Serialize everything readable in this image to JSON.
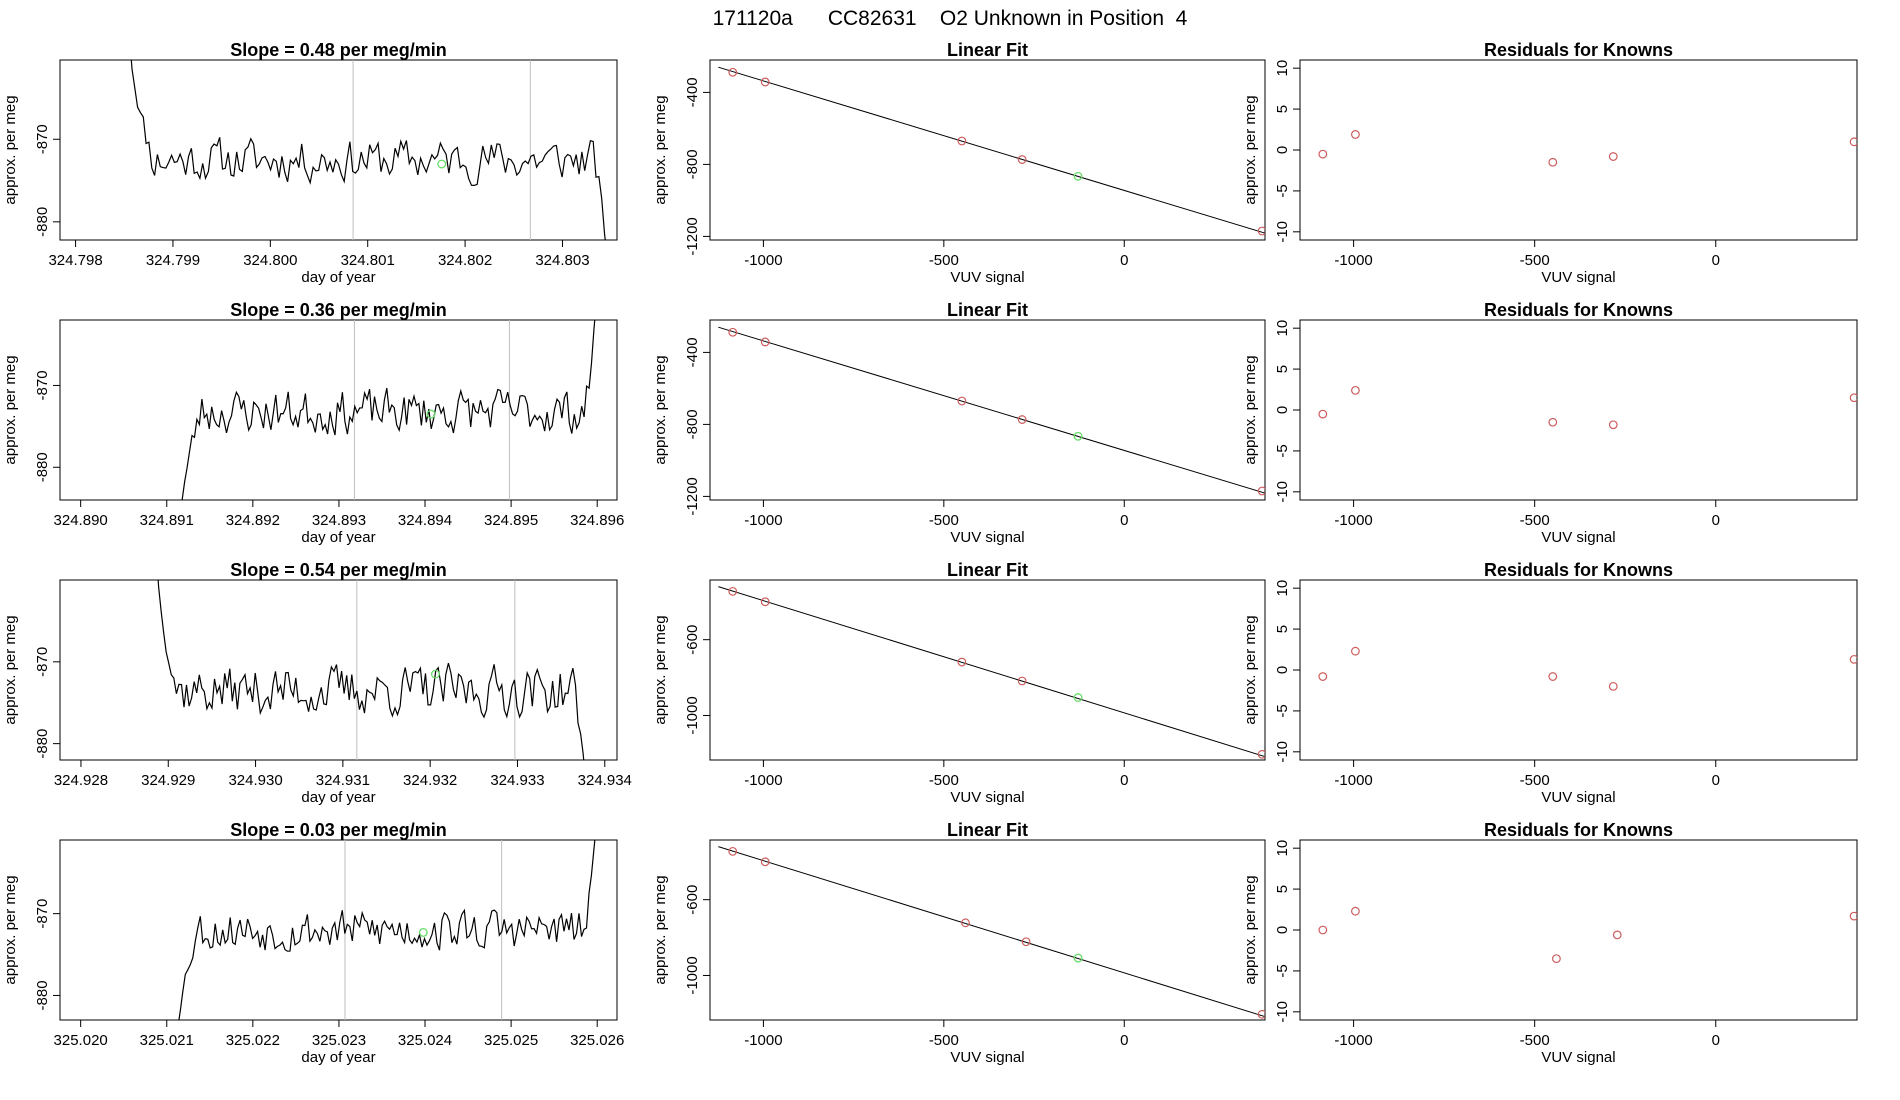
{
  "page_title": "171120a      CC82631    O2 Unknown in Position  4",
  "colors": {
    "line": "#000000",
    "point_known": "#cd5c5c",
    "point_unknown": "#66dd66",
    "vline": "#bebebe"
  },
  "labels": {
    "day_of_year": "day of year",
    "vuv_signal": "VUV signal",
    "approx_per_meg": "approx. per meg",
    "linear_fit": "Linear Fit",
    "residuals": "Residuals for Knowns"
  },
  "chart_data": [
    {
      "type": "line",
      "row": 0,
      "title": "Slope =  0.48  per meg/min",
      "xlabel": "day of year",
      "ylabel": "approx. per meg",
      "xlim": [
        324.79784,
        324.80356
      ],
      "ylim": [
        -882.2,
        -860.4
      ],
      "xticks": [
        324.798,
        324.799,
        324.8,
        324.801,
        324.802,
        324.803
      ],
      "xtick_labels": [
        "324.798",
        "324.799",
        "324.800",
        "324.801",
        "324.802",
        "324.803"
      ],
      "yticks": [
        -880,
        -870
      ],
      "ytick_labels": [
        "-880",
        "-870"
      ],
      "x_start": 324.79855,
      "x_end": 324.80349,
      "start_level": -857,
      "end_level": -888,
      "mean_level": -872.5,
      "amplitude": 2.2,
      "seed": 11,
      "vlines": [
        324.80085,
        324.80267
      ],
      "unknown_point": {
        "x": 324.80176,
        "y": -873
      }
    },
    {
      "type": "scatter-fit",
      "row": 0,
      "title": "Linear Fit",
      "xlabel": "VUV signal",
      "ylabel": "approx. per meg",
      "xlim": [
        -1148,
        390
      ],
      "ylim": [
        -1220,
        -220
      ],
      "xticks": [
        -1000,
        -500,
        0
      ],
      "xtick_labels": [
        "-1000",
        "-500",
        "0"
      ],
      "yticks": [
        -1200,
        -800,
        -400
      ],
      "ytick_labels": [
        "-1200",
        "-800",
        "-400"
      ],
      "fit_x": [
        -1125,
        395
      ],
      "fit_y": [
        -260,
        -1185
      ],
      "points_x": [
        -1085,
        -995,
        -450,
        -283,
        382
      ],
      "points_y": [
        -288,
        -342,
        -670,
        -773,
        -1170
      ],
      "unknown": {
        "x": -128,
        "y": -866
      }
    },
    {
      "type": "scatter",
      "row": 0,
      "title": "Residuals for Knowns",
      "xlabel": "VUV signal",
      "ylabel": "approx. per meg",
      "xlim": [
        -1148,
        390
      ],
      "ylim": [
        -11,
        11
      ],
      "xticks": [
        -1000,
        -500,
        0
      ],
      "xtick_labels": [
        "-1000",
        "-500",
        "0"
      ],
      "yticks": [
        -10,
        -5,
        0,
        5,
        10
      ],
      "ytick_labels": [
        "-10",
        "-5",
        "0",
        "5",
        "10"
      ],
      "points_x": [
        -1085,
        -995,
        -450,
        -283,
        382
      ],
      "points_y": [
        -0.5,
        1.9,
        -1.5,
        -0.8,
        1.0
      ]
    },
    {
      "type": "line",
      "row": 1,
      "title": "Slope =  0.36  per meg/min",
      "xlabel": "day of year",
      "ylabel": "approx. per meg",
      "xlim": [
        324.88976,
        324.89623
      ],
      "ylim": [
        -884.0,
        -862.0
      ],
      "xticks": [
        324.89,
        324.891,
        324.892,
        324.893,
        324.894,
        324.895,
        324.896
      ],
      "xtick_labels": [
        "324.890",
        "324.891",
        "324.892",
        "324.893",
        "324.894",
        "324.895",
        "324.896"
      ],
      "yticks": [
        -880,
        -870
      ],
      "ytick_labels": [
        "-880",
        "-870"
      ],
      "x_start": 324.89115,
      "x_end": 324.89602,
      "start_level": -888,
      "end_level": -856,
      "mean_level": -873.2,
      "amplitude": 2.3,
      "seed": 23,
      "vlines": [
        324.89318,
        324.89498
      ],
      "unknown_point": {
        "x": 324.89407,
        "y": -873.5
      }
    },
    {
      "type": "scatter-fit",
      "row": 1,
      "title": "Linear Fit",
      "xlabel": "VUV signal",
      "ylabel": "approx. per meg",
      "xlim": [
        -1148,
        390
      ],
      "ylim": [
        -1220,
        -220
      ],
      "xticks": [
        -1000,
        -500,
        0
      ],
      "xtick_labels": [
        "-1000",
        "-500",
        "0"
      ],
      "yticks": [
        -1200,
        -800,
        -400
      ],
      "ytick_labels": [
        "-1200",
        "-800",
        "-400"
      ],
      "fit_x": [
        -1125,
        395
      ],
      "fit_y": [
        -260,
        -1185
      ],
      "points_x": [
        -1085,
        -995,
        -450,
        -283,
        382
      ],
      "points_y": [
        -288,
        -342,
        -670,
        -773,
        -1170
      ],
      "unknown": {
        "x": -128,
        "y": -866
      }
    },
    {
      "type": "scatter",
      "row": 1,
      "title": "Residuals for Knowns",
      "xlabel": "VUV signal",
      "ylabel": "approx. per meg",
      "xlim": [
        -1148,
        390
      ],
      "ylim": [
        -11,
        11
      ],
      "xticks": [
        -1000,
        -500,
        0
      ],
      "xtick_labels": [
        "-1000",
        "-500",
        "0"
      ],
      "yticks": [
        -10,
        -5,
        0,
        5,
        10
      ],
      "ytick_labels": [
        "-10",
        "-5",
        "0",
        "5",
        "10"
      ],
      "points_x": [
        -1085,
        -995,
        -450,
        -283,
        382
      ],
      "points_y": [
        -0.5,
        2.4,
        -1.5,
        -1.8,
        1.5
      ]
    },
    {
      "type": "line",
      "row": 2,
      "title": "Slope =  0.54  per meg/min",
      "xlabel": "day of year",
      "ylabel": "approx. per meg",
      "xlim": [
        324.92776,
        324.93414
      ],
      "ylim": [
        -882.0,
        -860.0
      ],
      "xticks": [
        324.928,
        324.929,
        324.93,
        324.931,
        324.932,
        324.933,
        324.934
      ],
      "xtick_labels": [
        "324.928",
        "324.929",
        "324.930",
        "324.931",
        "324.932",
        "324.933",
        "324.934"
      ],
      "yticks": [
        -880,
        -870
      ],
      "ytick_labels": [
        "-880",
        "-870"
      ],
      "x_start": 324.92886,
      "x_end": 324.93381,
      "start_level": -856,
      "end_level": -888,
      "mean_level": -873.5,
      "amplitude": 2.6,
      "seed": 37,
      "vlines": [
        324.93116,
        324.93297
      ],
      "unknown_point": {
        "x": 324.93206,
        "y": -871.5
      }
    },
    {
      "type": "scatter-fit",
      "row": 2,
      "title": "Linear Fit",
      "xlabel": "VUV signal",
      "ylabel": "approx. per meg",
      "xlim": [
        -1148,
        390
      ],
      "ylim": [
        -1235,
        -285
      ],
      "xticks": [
        -1000,
        -500,
        0
      ],
      "xtick_labels": [
        "-1000",
        "-500",
        "0"
      ],
      "yticks": [
        -1000,
        -600
      ],
      "ytick_labels": [
        "-1000",
        "-600"
      ],
      "fit_x": [
        -1125,
        395
      ],
      "fit_y": [
        -320,
        -1220
      ],
      "points_x": [
        -1085,
        -995,
        -450,
        -283,
        382
      ],
      "points_y": [
        -345,
        -400,
        -718,
        -818,
        -1205
      ],
      "unknown": {
        "x": -128,
        "y": -905
      }
    },
    {
      "type": "scatter",
      "row": 2,
      "title": "Residuals for Knowns",
      "xlabel": "VUV signal",
      "ylabel": "approx. per meg",
      "xlim": [
        -1148,
        390
      ],
      "ylim": [
        -11,
        11
      ],
      "xticks": [
        -1000,
        -500,
        0
      ],
      "xtick_labels": [
        "-1000",
        "-500",
        "0"
      ],
      "yticks": [
        -10,
        -5,
        0,
        5,
        10
      ],
      "ytick_labels": [
        "-10",
        "-5",
        "0",
        "5",
        "10"
      ],
      "points_x": [
        -1085,
        -995,
        -450,
        -283,
        382
      ],
      "points_y": [
        -0.8,
        2.3,
        -0.8,
        -2.0,
        1.3
      ]
    },
    {
      "type": "line",
      "row": 3,
      "title": "Slope =  0.03  per meg/min",
      "xlabel": "day of year",
      "ylabel": "approx. per meg",
      "xlim": [
        325.01976,
        325.02623
      ],
      "ylim": [
        -883.0,
        -861.0
      ],
      "xticks": [
        325.02,
        325.021,
        325.022,
        325.023,
        325.024,
        325.025,
        325.026
      ],
      "xtick_labels": [
        "325.020",
        "325.021",
        "325.022",
        "325.023",
        "325.024",
        "325.025",
        "325.026"
      ],
      "yticks": [
        -880,
        -870
      ],
      "ytick_labels": [
        "-880",
        "-870"
      ],
      "x_start": 325.0211,
      "x_end": 325.02602,
      "start_level": -888,
      "end_level": -856,
      "mean_level": -872.0,
      "amplitude": 2.2,
      "seed": 53,
      "vlines": [
        325.02307,
        325.02489
      ],
      "unknown_point": {
        "x": 325.02398,
        "y": -872.3
      }
    },
    {
      "type": "scatter-fit",
      "row": 3,
      "title": "Linear Fit",
      "xlabel": "VUV signal",
      "ylabel": "approx. per meg",
      "xlim": [
        -1148,
        390
      ],
      "ylim": [
        -1235,
        -285
      ],
      "xticks": [
        -1000,
        -500,
        0
      ],
      "xtick_labels": [
        "-1000",
        "-500",
        "0"
      ],
      "yticks": [
        -1000,
        -600
      ],
      "ytick_labels": [
        "-1000",
        "-600"
      ],
      "fit_x": [
        -1125,
        395
      ],
      "fit_y": [
        -320,
        -1220
      ],
      "points_x": [
        -1085,
        -995,
        -440,
        -272,
        382
      ],
      "points_y": [
        -345,
        -400,
        -722,
        -822,
        -1205
      ],
      "unknown": {
        "x": -128,
        "y": -908
      }
    },
    {
      "type": "scatter",
      "row": 3,
      "title": "Residuals for Knowns",
      "xlabel": "VUV signal",
      "ylabel": "approx. per meg",
      "xlim": [
        -1148,
        390
      ],
      "ylim": [
        -11,
        11
      ],
      "xticks": [
        -1000,
        -500,
        0
      ],
      "xtick_labels": [
        "-1000",
        "-500",
        "0"
      ],
      "yticks": [
        -10,
        -5,
        0,
        5,
        10
      ],
      "ytick_labels": [
        "-10",
        "-5",
        "0",
        "5",
        "10"
      ],
      "points_x": [
        -1085,
        -995,
        -440,
        -272,
        382
      ],
      "points_y": [
        0.0,
        2.3,
        -3.5,
        -0.6,
        1.7
      ]
    }
  ]
}
